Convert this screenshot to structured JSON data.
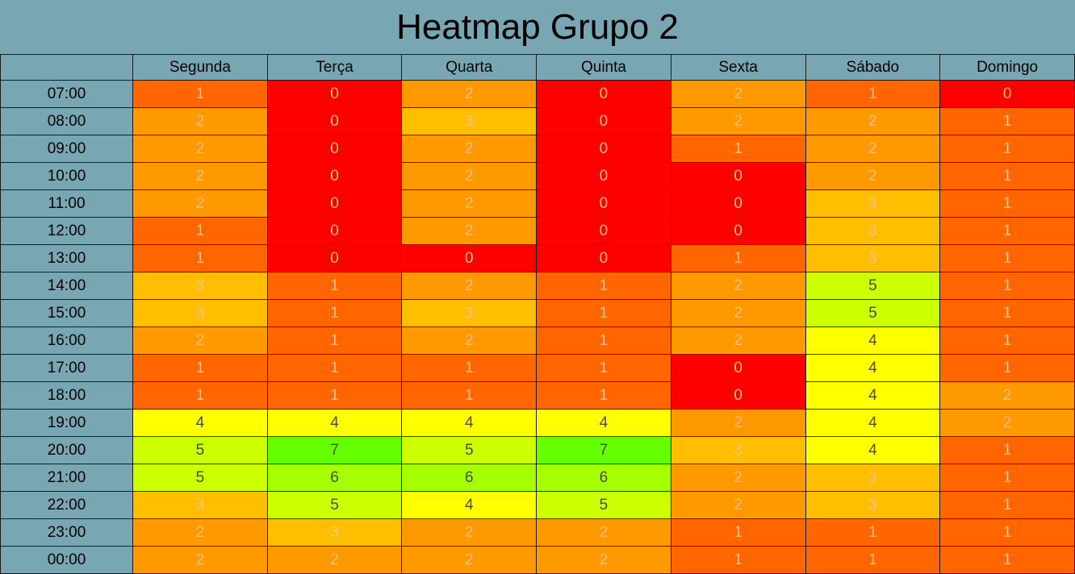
{
  "chart_data": {
    "type": "heatmap",
    "title": "Heatmap Grupo 2",
    "x_categories": [
      "Segunda",
      "Terça",
      "Quarta",
      "Quinta",
      "Sexta",
      "Sábado",
      "Domingo"
    ],
    "y_categories": [
      "07:00",
      "08:00",
      "09:00",
      "10:00",
      "11:00",
      "12:00",
      "13:00",
      "14:00",
      "15:00",
      "16:00",
      "17:00",
      "18:00",
      "19:00",
      "20:00",
      "21:00",
      "22:00",
      "23:00",
      "00:00"
    ],
    "values": [
      [
        1,
        0,
        2,
        0,
        2,
        1,
        0
      ],
      [
        2,
        0,
        3,
        0,
        2,
        2,
        1
      ],
      [
        2,
        0,
        2,
        0,
        1,
        2,
        1
      ],
      [
        2,
        0,
        2,
        0,
        0,
        2,
        1
      ],
      [
        2,
        0,
        2,
        0,
        0,
        3,
        1
      ],
      [
        1,
        0,
        2,
        0,
        0,
        3,
        1
      ],
      [
        1,
        0,
        0,
        0,
        1,
        3,
        1
      ],
      [
        3,
        1,
        2,
        1,
        2,
        5,
        1
      ],
      [
        3,
        1,
        3,
        1,
        2,
        5,
        1
      ],
      [
        2,
        1,
        2,
        1,
        2,
        4,
        1
      ],
      [
        1,
        1,
        1,
        1,
        0,
        4,
        1
      ],
      [
        1,
        1,
        1,
        1,
        0,
        4,
        2
      ],
      [
        4,
        4,
        4,
        4,
        2,
        4,
        2
      ],
      [
        5,
        7,
        5,
        7,
        3,
        4,
        1
      ],
      [
        5,
        6,
        6,
        6,
        2,
        3,
        1
      ],
      [
        3,
        5,
        4,
        5,
        2,
        3,
        1
      ],
      [
        2,
        3,
        2,
        2,
        1,
        1,
        1
      ],
      [
        2,
        2,
        2,
        2,
        1,
        1,
        1
      ]
    ],
    "color_scale": {
      "0": "#ff0000",
      "1": "#ff6600",
      "2": "#ff9900",
      "3": "#ffbf00",
      "4": "#ffff00",
      "5": "#ccff00",
      "6": "#a6ff00",
      "7": "#66ff00"
    },
    "text_colors": {
      "light": "#f2c28f",
      "dark": "#4a4a4a"
    },
    "header_color": "#78a6b2",
    "grid_color": "#1a1a1a"
  }
}
